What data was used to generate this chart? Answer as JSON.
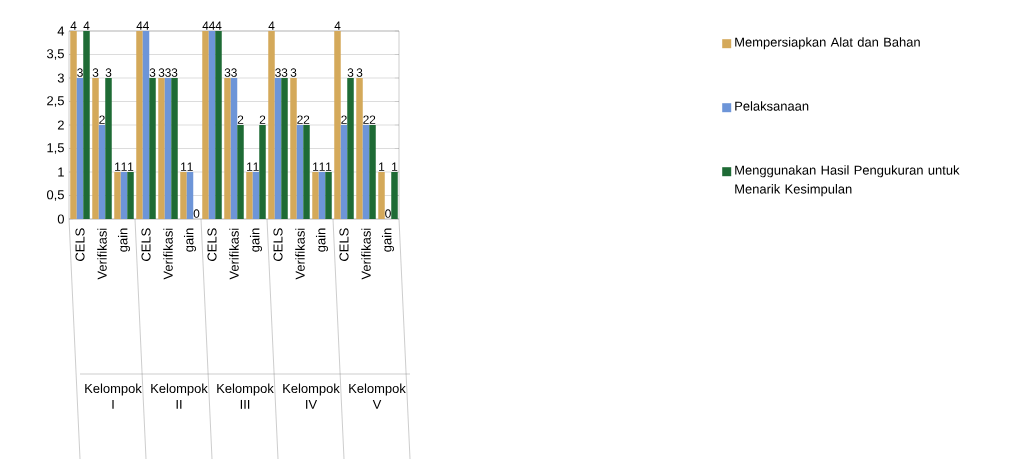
{
  "chart_data": {
    "type": "bar",
    "categories": [
      "CELS",
      "Verifikasi",
      "gain",
      "CELS",
      "Verifikasi",
      "gain",
      "CELS",
      "Verifikasi",
      "gain",
      "CELS",
      "Verifikasi",
      "gain",
      "CELS",
      "Verifikasi",
      "gain"
    ],
    "series": [
      {
        "name": "Mempersiapkan Alat dan Bahan",
        "color": "#d4a95a",
        "values": [
          4,
          3,
          1,
          4,
          3,
          1,
          4,
          3,
          1,
          4,
          3,
          1,
          4,
          3,
          1
        ]
      },
      {
        "name": "Pelaksanaan",
        "color": "#6d95d8",
        "values": [
          3,
          2,
          1,
          4,
          3,
          1,
          4,
          3,
          1,
          3,
          2,
          1,
          2,
          2,
          0
        ]
      },
      {
        "name": "Menggunakan Hasil Pengukuran untuk Menarik Kesimpulan",
        "color": "#1e6b35",
        "values": [
          4,
          3,
          1,
          3,
          3,
          0,
          4,
          2,
          2,
          3,
          2,
          1,
          3,
          2,
          1
        ]
      }
    ],
    "annotations": [
      "Kelompok I",
      "Kelompok II",
      "Kelompok III",
      "Kelompok IV",
      "Kelompok V"
    ],
    "ylim": [
      0,
      4
    ],
    "yticks": [
      0,
      {
        "value": 0.5,
        "label": "0,5"
      },
      1,
      {
        "value": 1.5,
        "label": "1,5"
      },
      2,
      {
        "value": 2.5,
        "label": "2,5"
      },
      3,
      {
        "value": 3.5,
        "label": "3,5"
      },
      4
    ],
    "grid": "y",
    "legend": "right",
    "data_labels": true
  }
}
